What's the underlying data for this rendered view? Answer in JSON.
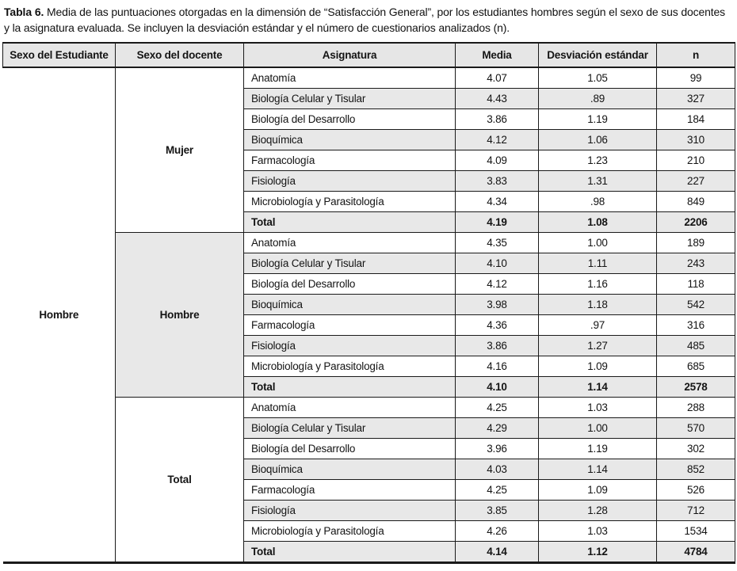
{
  "caption": {
    "label": "Tabla 6.",
    "text": " Media de las puntuaciones otorgadas en la dimensión de “Satisfacción General”, por los estudiantes hombres según el sexo de sus docentes y la asignatura evaluada. Se incluyen la desviación estándar y el número de cuestionarios analizados (n)."
  },
  "colors": {
    "stripe": "#e8e8e8",
    "header_bg": "#e6e6e6",
    "border": "#1a1a1a"
  },
  "table": {
    "columns": [
      "Sexo del Estudiante",
      "Sexo del docente",
      "Asignatura",
      "Media",
      "Desviación estándar",
      "n"
    ],
    "student_sex": "Hombre",
    "groups": [
      {
        "teacher_sex": "Mujer",
        "shaded": false,
        "rows": [
          {
            "subject": "Anatomía",
            "mean": "4.07",
            "sd": "1.05",
            "n": "99",
            "total": false
          },
          {
            "subject": "Biología Celular y Tisular",
            "mean": "4.43",
            "sd": ".89",
            "n": "327",
            "total": false
          },
          {
            "subject": "Biología del Desarrollo",
            "mean": "3.86",
            "sd": "1.19",
            "n": "184",
            "total": false
          },
          {
            "subject": "Bioquímica",
            "mean": "4.12",
            "sd": "1.06",
            "n": "310",
            "total": false
          },
          {
            "subject": "Farmacología",
            "mean": "4.09",
            "sd": "1.23",
            "n": "210",
            "total": false
          },
          {
            "subject": "Fisiología",
            "mean": "3.83",
            "sd": "1.31",
            "n": "227",
            "total": false
          },
          {
            "subject": "Microbiología y Parasitología",
            "mean": "4.34",
            "sd": ".98",
            "n": "849",
            "total": false
          },
          {
            "subject": "Total",
            "mean": "4.19",
            "sd": "1.08",
            "n": "2206",
            "total": true
          }
        ]
      },
      {
        "teacher_sex": "Hombre",
        "shaded": true,
        "rows": [
          {
            "subject": "Anatomía",
            "mean": "4.35",
            "sd": "1.00",
            "n": "189",
            "total": false
          },
          {
            "subject": "Biología Celular y Tisular",
            "mean": "4.10",
            "sd": "1.11",
            "n": "243",
            "total": false
          },
          {
            "subject": "Biología del Desarrollo",
            "mean": "4.12",
            "sd": "1.16",
            "n": "118",
            "total": false
          },
          {
            "subject": "Bioquímica",
            "mean": "3.98",
            "sd": "1.18",
            "n": "542",
            "total": false
          },
          {
            "subject": "Farmacología",
            "mean": "4.36",
            "sd": ".97",
            "n": "316",
            "total": false
          },
          {
            "subject": "Fisiología",
            "mean": "3.86",
            "sd": "1.27",
            "n": "485",
            "total": false
          },
          {
            "subject": "Microbiología y Parasitología",
            "mean": "4.16",
            "sd": "1.09",
            "n": "685",
            "total": false
          },
          {
            "subject": "Total",
            "mean": "4.10",
            "sd": "1.14",
            "n": "2578",
            "total": true
          }
        ]
      },
      {
        "teacher_sex": "Total",
        "shaded": false,
        "rows": [
          {
            "subject": "Anatomía",
            "mean": "4.25",
            "sd": "1.03",
            "n": "288",
            "total": false
          },
          {
            "subject": "Biología Celular y Tisular",
            "mean": "4.29",
            "sd": "1.00",
            "n": "570",
            "total": false
          },
          {
            "subject": "Biología del Desarrollo",
            "mean": "3.96",
            "sd": "1.19",
            "n": "302",
            "total": false
          },
          {
            "subject": "Bioquímica",
            "mean": "4.03",
            "sd": "1.14",
            "n": "852",
            "total": false
          },
          {
            "subject": "Farmacología",
            "mean": "4.25",
            "sd": "1.09",
            "n": "526",
            "total": false
          },
          {
            "subject": "Fisiología",
            "mean": "3.85",
            "sd": "1.28",
            "n": "712",
            "total": false
          },
          {
            "subject": "Microbiología y Parasitología",
            "mean": "4.26",
            "sd": "1.03",
            "n": "1534",
            "total": false
          },
          {
            "subject": "Total",
            "mean": "4.14",
            "sd": "1.12",
            "n": "4784",
            "total": true
          }
        ]
      }
    ]
  }
}
